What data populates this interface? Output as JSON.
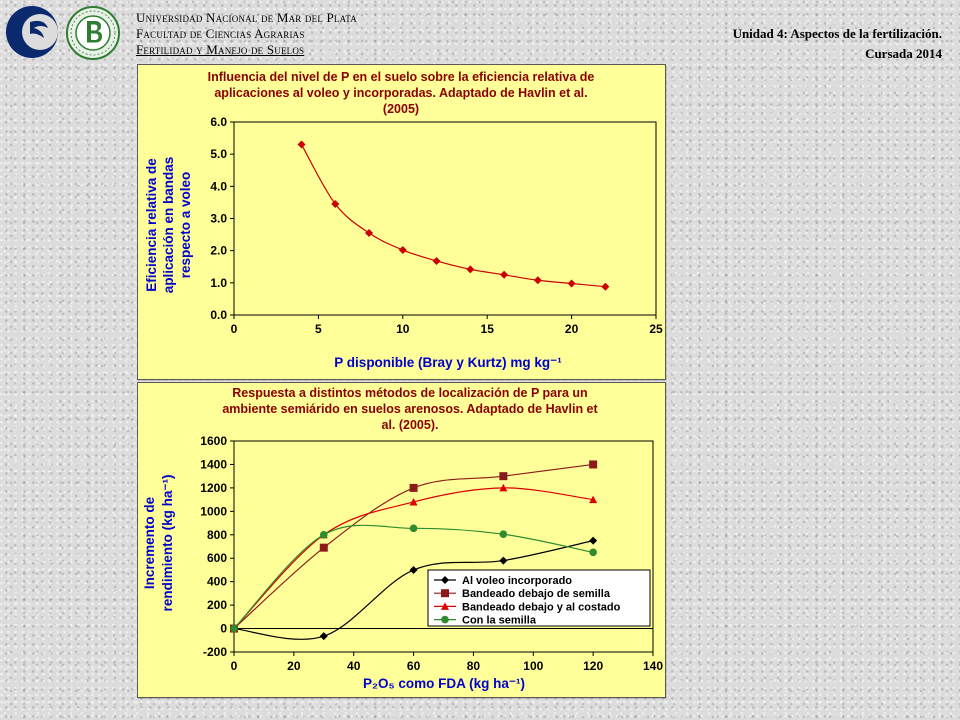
{
  "header": {
    "institution_line1": "Universidad Nacional de Mar del Plata",
    "institution_line2": "Facultad de Ciencias Agrarias",
    "institution_line3": "Fertilidad y Manejo de Suelos",
    "unit_title": "Unidad 4: Aspectos de la fertilización.",
    "course_year": "Cursada 2014"
  },
  "chart_data": [
    {
      "type": "line",
      "title_lines": [
        "Influencia del nivel de P en el suelo sobre la eficiencia relativa de",
        "aplicaciones al voleo y incorporadas. Adaptado de Havlin et al.",
        "(2005)"
      ],
      "ylabel_lines": [
        "Eficiencia relativa de",
        "aplicación en bandas",
        "respecto a voleo"
      ],
      "xlabel": "P disponible (Bray y Kurtz) mg kg⁻¹",
      "xlim": [
        0,
        25
      ],
      "ylim": [
        0,
        6
      ],
      "x_ticks": [
        "0",
        "5",
        "10",
        "15",
        "20",
        "25"
      ],
      "y_ticks": [
        "0.0",
        "1.0",
        "2.0",
        "3.0",
        "4.0",
        "5.0",
        "6.0"
      ],
      "color": "#cc0000",
      "marker": "diamond",
      "grid": false,
      "series": [
        {
          "x": [
            4,
            6,
            8,
            10,
            12,
            14,
            16,
            18,
            20,
            22
          ],
          "y": [
            5.3,
            3.45,
            2.55,
            2.02,
            1.68,
            1.42,
            1.25,
            1.08,
            0.98,
            0.88
          ]
        }
      ]
    },
    {
      "type": "line",
      "title_lines": [
        "Respuesta a distintos métodos de localización de P para un",
        "ambiente semiárido en suelos arenosos. Adaptado de Havlin et",
        "al. (2005)."
      ],
      "ylabel_lines": [
        "Incremento de",
        "rendimiento (kg ha⁻¹)"
      ],
      "xlabel": "P₂O₅ como FDA (kg ha⁻¹)",
      "xlim": [
        0,
        140
      ],
      "ylim": [
        -200,
        1600
      ],
      "x_ticks": [
        "0",
        "20",
        "40",
        "60",
        "80",
        "100",
        "120",
        "140"
      ],
      "y_ticks": [
        "-200",
        "0",
        "200",
        "400",
        "600",
        "800",
        "1000",
        "1200",
        "1400",
        "1600"
      ],
      "grid": false,
      "legend_position": "bottom-right",
      "series": [
        {
          "name": "Al voleo incorporado",
          "color": "#000000",
          "marker": "diamond",
          "x": [
            0,
            30,
            60,
            90,
            120
          ],
          "y": [
            0,
            -65,
            500,
            580,
            750
          ]
        },
        {
          "name": "Bandeado debajo de semilla",
          "color": "#8b1a1a",
          "marker": "square",
          "x": [
            0,
            30,
            60,
            90,
            120
          ],
          "y": [
            0,
            690,
            1200,
            1300,
            1400
          ]
        },
        {
          "name": "Bandeado debajo y al costado",
          "color": "#dd0000",
          "marker": "triangle",
          "x": [
            0,
            30,
            60,
            90,
            120
          ],
          "y": [
            0,
            800,
            1080,
            1200,
            1100
          ]
        },
        {
          "name": "Con la semilla",
          "color": "#2e8b2e",
          "marker": "circle",
          "x": [
            0,
            30,
            60,
            90,
            120
          ],
          "y": [
            0,
            800,
            855,
            805,
            650
          ]
        }
      ]
    }
  ]
}
